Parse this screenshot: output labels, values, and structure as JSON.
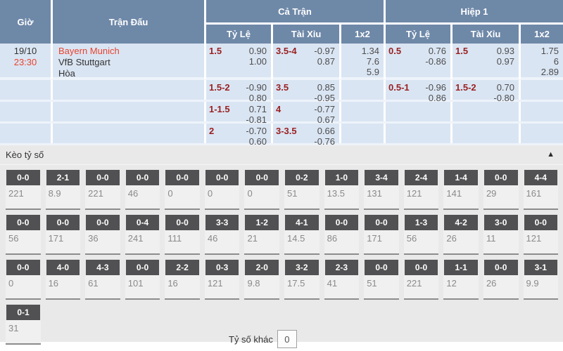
{
  "colors": {
    "header_bg": "#6e88a8",
    "row_bg": "#dae5f3",
    "handicap_line": "#991f1f",
    "accent_red": "#e8432d",
    "score_box_bg": "#515153",
    "section_bg": "#e9e9e9"
  },
  "table": {
    "header": {
      "time": "Giờ",
      "match": "Trận Đấu",
      "full_time": "Cả Trận",
      "first_half": "Hiệp 1",
      "handicap": "Tỷ Lệ",
      "over_under": "Tài Xỉu",
      "one_x_two": "1x2"
    },
    "rows": [
      {
        "date": "19/10",
        "time": "23:30",
        "home": "Bayern Munich",
        "away": "VfB Stuttgart",
        "draw": "Hòa",
        "ft_handicap": {
          "line": "1.5",
          "odds": [
            "0.90",
            "1.00"
          ]
        },
        "ft_ou": {
          "line": "3.5-4",
          "odds": [
            "-0.97",
            "0.87"
          ]
        },
        "ft_1x2": [
          "1.34",
          "7.6",
          "5.9"
        ],
        "h1_handicap": {
          "line": "0.5",
          "odds": [
            "0.76",
            "-0.86"
          ]
        },
        "h1_ou": {
          "line": "1.5",
          "odds": [
            "0.93",
            "0.97"
          ]
        },
        "h1_1x2": [
          "1.75",
          "6",
          "2.89"
        ]
      },
      {
        "ft_handicap": {
          "line": "1.5-2",
          "odds": [
            "-0.90",
            "0.80"
          ]
        },
        "ft_ou": {
          "line": "3.5",
          "odds": [
            "0.85",
            "-0.95"
          ]
        },
        "h1_handicap": {
          "line": "0.5-1",
          "odds": [
            "-0.96",
            "0.86"
          ]
        },
        "h1_ou": {
          "line": "1.5-2",
          "odds": [
            "0.70",
            "-0.80"
          ]
        }
      },
      {
        "ft_handicap": {
          "line": "1-1.5",
          "odds": [
            "0.71",
            "-0.81"
          ]
        },
        "ft_ou": {
          "line": "4",
          "odds": [
            "-0.77",
            "0.67"
          ]
        }
      },
      {
        "ft_handicap": {
          "line": "2",
          "odds": [
            "-0.70",
            "0.60"
          ]
        },
        "ft_ou": {
          "line": "3-3.5",
          "odds": [
            "0.66",
            "-0.76"
          ]
        }
      }
    ]
  },
  "score_section": {
    "title": "Kèo tỷ số",
    "collapse_icon": "▲",
    "other_label": "Tỷ số khác",
    "other_value": "0",
    "rows": [
      [
        {
          "score": "0-0",
          "odds": "221"
        },
        {
          "score": "2-1",
          "odds": "8.9"
        },
        {
          "score": "0-0",
          "odds": "221"
        },
        {
          "score": "0-0",
          "odds": "46"
        },
        {
          "score": "0-0",
          "odds": "0"
        },
        {
          "score": "0-0",
          "odds": "0"
        },
        {
          "score": "0-0",
          "odds": "0"
        },
        {
          "score": "0-2",
          "odds": "51"
        },
        {
          "score": "1-0",
          "odds": "13.5"
        },
        {
          "score": "3-4",
          "odds": "131"
        },
        {
          "score": "2-4",
          "odds": "121"
        },
        {
          "score": "1-4",
          "odds": "141"
        },
        {
          "score": "0-0",
          "odds": "29"
        },
        {
          "score": "4-4",
          "odds": "161"
        }
      ],
      [
        {
          "score": "0-0",
          "odds": "56"
        },
        {
          "score": "0-0",
          "odds": "171"
        },
        {
          "score": "0-0",
          "odds": "36"
        },
        {
          "score": "0-4",
          "odds": "241"
        },
        {
          "score": "0-0",
          "odds": "111"
        },
        {
          "score": "3-3",
          "odds": "46"
        },
        {
          "score": "1-2",
          "odds": "21"
        },
        {
          "score": "4-1",
          "odds": "14.5"
        },
        {
          "score": "0-0",
          "odds": "86"
        },
        {
          "score": "0-0",
          "odds": "171"
        },
        {
          "score": "1-3",
          "odds": "56"
        },
        {
          "score": "4-2",
          "odds": "26"
        },
        {
          "score": "3-0",
          "odds": "11"
        },
        {
          "score": "0-0",
          "odds": "121"
        }
      ],
      [
        {
          "score": "0-0",
          "odds": "0"
        },
        {
          "score": "4-0",
          "odds": "16"
        },
        {
          "score": "4-3",
          "odds": "61"
        },
        {
          "score": "0-0",
          "odds": "101"
        },
        {
          "score": "2-2",
          "odds": "16"
        },
        {
          "score": "0-3",
          "odds": "121"
        },
        {
          "score": "2-0",
          "odds": "9.8"
        },
        {
          "score": "3-2",
          "odds": "17.5"
        },
        {
          "score": "2-3",
          "odds": "41"
        },
        {
          "score": "0-0",
          "odds": "51"
        },
        {
          "score": "0-0",
          "odds": "221"
        },
        {
          "score": "1-1",
          "odds": "12"
        },
        {
          "score": "0-0",
          "odds": "26"
        },
        {
          "score": "3-1",
          "odds": "9.9"
        }
      ],
      [
        {
          "score": "0-1",
          "odds": "31"
        }
      ]
    ]
  }
}
